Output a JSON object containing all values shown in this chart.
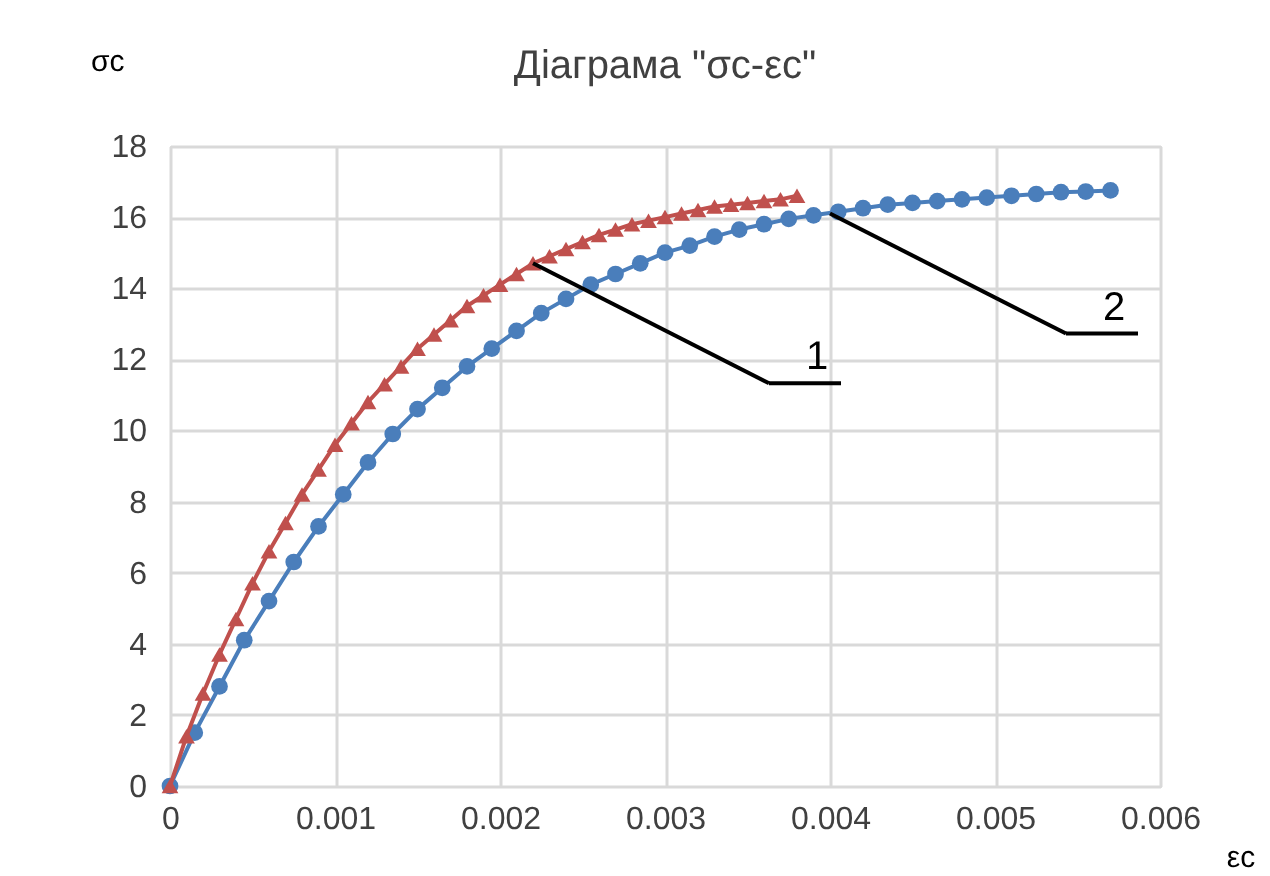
{
  "chart_data": {
    "type": "line",
    "title": "Діаграма \"σc-εc\"",
    "xlabel": "εc",
    "ylabel": "σc",
    "xlim": [
      0,
      0.006
    ],
    "xticks": [
      0,
      0.001,
      0.002,
      0.003,
      0.004,
      0.005,
      0.006
    ],
    "ylim": [
      0,
      18
    ],
    "yticks": [
      0,
      2,
      4,
      6,
      8,
      10,
      12,
      14,
      16,
      18
    ],
    "grid": true,
    "line_style": "solid",
    "annotations": [
      {
        "text": "1",
        "x": 0.0022,
        "y": 14.7
      },
      {
        "text": "2",
        "x": 0.004,
        "y": 16.1
      }
    ],
    "series": [
      {
        "color": "#4a7ebb",
        "marker": "circle",
        "x": [
          0,
          0.00015,
          0.0003,
          0.00045,
          0.0006,
          0.00075,
          0.0009,
          0.00105,
          0.0012,
          0.00135,
          0.0015,
          0.00165,
          0.0018,
          0.00195,
          0.0021,
          0.00225,
          0.0024,
          0.00255,
          0.0027,
          0.00285,
          0.003,
          0.00315,
          0.0033,
          0.00345,
          0.0036,
          0.00375,
          0.0039,
          0.00405,
          0.0042,
          0.00435,
          0.0045,
          0.00465,
          0.0048,
          0.00495,
          0.0051,
          0.00525,
          0.0054,
          0.00555,
          0.0057
        ],
        "values": [
          0,
          1.5,
          2.8,
          4.1,
          5.2,
          6.3,
          7.3,
          8.2,
          9.1,
          9.9,
          10.6,
          11.2,
          11.8,
          12.3,
          12.8,
          13.3,
          13.7,
          14.1,
          14.4,
          14.7,
          15.0,
          15.2,
          15.45,
          15.65,
          15.8,
          15.95,
          16.05,
          16.15,
          16.25,
          16.35,
          16.4,
          16.45,
          16.5,
          16.55,
          16.6,
          16.65,
          16.7,
          16.72,
          16.75
        ]
      },
      {
        "color": "#c0504d",
        "marker": "triangle",
        "x": [
          0,
          0.0001,
          0.0002,
          0.0003,
          0.0004,
          0.0005,
          0.0006,
          0.0007,
          0.0008,
          0.0009,
          0.001,
          0.0011,
          0.0012,
          0.0013,
          0.0014,
          0.0015,
          0.0016,
          0.0017,
          0.0018,
          0.0019,
          0.002,
          0.0021,
          0.0022,
          0.0023,
          0.0024,
          0.0025,
          0.0026,
          0.0027,
          0.0028,
          0.0029,
          0.003,
          0.0031,
          0.0032,
          0.0033,
          0.0034,
          0.0035,
          0.0036,
          0.0037,
          0.0038
        ],
        "values": [
          0,
          1.4,
          2.6,
          3.7,
          4.7,
          5.7,
          6.6,
          7.4,
          8.2,
          8.9,
          9.6,
          10.2,
          10.8,
          11.3,
          11.8,
          12.3,
          12.7,
          13.1,
          13.5,
          13.8,
          14.1,
          14.4,
          14.7,
          14.9,
          15.1,
          15.3,
          15.5,
          15.65,
          15.8,
          15.9,
          16.0,
          16.1,
          16.2,
          16.3,
          16.35,
          16.4,
          16.45,
          16.5,
          16.6
        ]
      }
    ]
  }
}
